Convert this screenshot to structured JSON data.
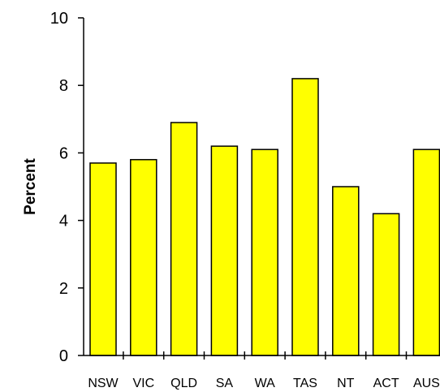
{
  "chart_data": {
    "type": "bar",
    "categories": [
      "NSW",
      "VIC",
      "QLD",
      "SA",
      "WA",
      "TAS",
      "NT",
      "ACT",
      "AUS"
    ],
    "values": [
      5.7,
      5.8,
      6.9,
      6.2,
      6.1,
      8.2,
      5.0,
      4.2,
      6.1
    ],
    "title": "",
    "xlabel": "",
    "ylabel": "Percent",
    "ylim": [
      0,
      10
    ],
    "yticks": [
      "0",
      "2",
      "4",
      "6",
      "8",
      "10"
    ],
    "grid": false,
    "colors": {
      "bar_fill": "#ffff00",
      "bar_stroke": "#000000",
      "axis": "#000000"
    }
  }
}
